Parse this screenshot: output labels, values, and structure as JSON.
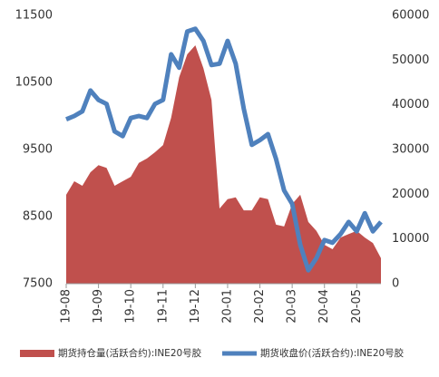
{
  "chart_data": {
    "type": "combo",
    "categories": [
      "19-08",
      null,
      null,
      null,
      "19-09",
      null,
      null,
      null,
      "19-10",
      null,
      null,
      null,
      "19-11",
      null,
      null,
      null,
      "19-12",
      null,
      null,
      null,
      "20-01",
      null,
      null,
      null,
      "20-02",
      null,
      null,
      null,
      "20-03",
      null,
      null,
      null,
      "20-04",
      null,
      null,
      null,
      "20-05",
      null,
      null,
      null
    ],
    "series": [
      {
        "name": "期货持仓量(活跃合约):INE20号胶",
        "type": "area",
        "axis": "y2",
        "color": "#c0504d",
        "values": [
          19900,
          22900,
          21900,
          24900,
          26500,
          25900,
          21900,
          22900,
          23900,
          27000,
          28000,
          29400,
          31000,
          37100,
          46200,
          51300,
          53300,
          48200,
          41100,
          16800,
          18900,
          19300,
          16400,
          16400,
          19300,
          18900,
          13200,
          12800,
          17800,
          19900,
          13800,
          11800,
          8700,
          7700,
          10300,
          11100,
          11800,
          10300,
          9100,
          5700
        ]
      },
      {
        "name": "期货收盘价(活跃合约):INE20号胶",
        "type": "line",
        "axis": "y",
        "color": "#4f81bd",
        "values": [
          9950,
          10000,
          10070,
          10380,
          10240,
          10180,
          9770,
          9700,
          9970,
          10000,
          9970,
          10180,
          10240,
          10920,
          10720,
          11260,
          11300,
          11120,
          10760,
          10780,
          11120,
          10780,
          10110,
          9570,
          9640,
          9730,
          9360,
          8890,
          8690,
          8080,
          7700,
          7880,
          8150,
          8110,
          8240,
          8420,
          8280,
          8550,
          8280,
          8420
        ]
      }
    ],
    "ylim": [
      7500,
      11500
    ],
    "yticks": [
      7500,
      8500,
      9500,
      10500,
      11500
    ],
    "y2lim": [
      0,
      60000
    ],
    "y2ticks": [
      0,
      10000,
      20000,
      30000,
      40000,
      50000,
      60000
    ]
  }
}
